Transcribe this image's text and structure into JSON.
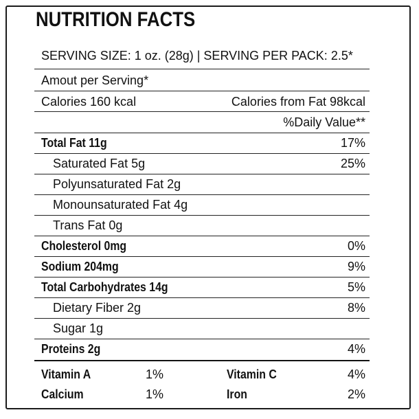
{
  "title": "NUTRITION FACTS",
  "serving_line": "SERVING SIZE: 1 oz. (28g) | SERVING PER PACK: 2.5*",
  "amount_per_serving": "Amout per Serving*",
  "calories": "Calories 160 kcal",
  "calories_from_fat": "Calories from Fat 98kcal",
  "daily_value_header": "%Daily Value**",
  "nutrients": [
    {
      "label": "Total Fat 11g",
      "dv": "17%"
    },
    {
      "label": "Saturated Fat 5g",
      "dv": "25%"
    },
    {
      "label": "Polyunsaturated Fat 2g",
      "dv": ""
    },
    {
      "label": "Monounsaturated Fat 4g",
      "dv": ""
    },
    {
      "label": "Trans Fat 0g",
      "dv": ""
    },
    {
      "label": "Cholesterol 0mg",
      "dv": "0%"
    },
    {
      "label": "Sodium 204mg",
      "dv": "9%"
    },
    {
      "label": "Total Carbohydrates 14g",
      "dv": "5%"
    },
    {
      "label": "Dietary Fiber 2g",
      "dv": "8%"
    },
    {
      "label": "Sugar 1g",
      "dv": ""
    },
    {
      "label": "Proteins 2g",
      "dv": "4%"
    }
  ],
  "vitamins": [
    {
      "name": "Vitamin A",
      "value": "1%",
      "name2": "Vitamin C",
      "value2": "4%"
    },
    {
      "name": "Calcium",
      "value": "1%",
      "name2": "Iron",
      "value2": "2%"
    }
  ]
}
